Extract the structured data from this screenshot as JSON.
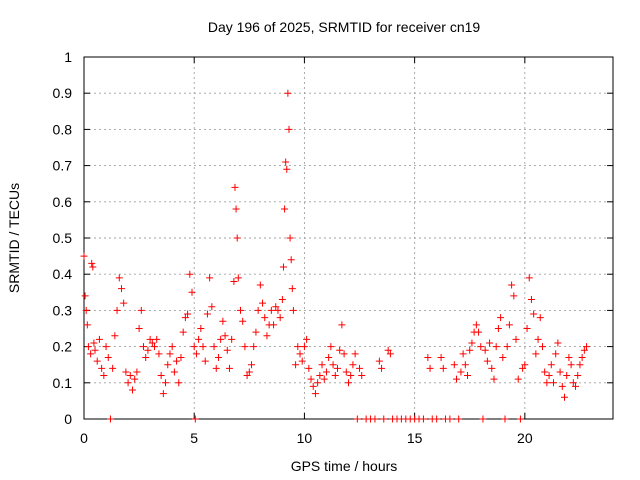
{
  "chart_data": {
    "type": "scatter",
    "title": "Day 196 of 2025, SRMTID for receiver cn19",
    "xlabel": "GPS time / hours",
    "ylabel": "SRMTID / TECUs",
    "xlim": [
      0,
      24
    ],
    "ylim": [
      0,
      1
    ],
    "x_ticks": [
      0,
      5,
      10,
      15,
      20
    ],
    "x_tick_labels": [
      "0",
      "5",
      "10",
      "15",
      "20"
    ],
    "y_ticks": [
      0,
      0.1,
      0.2,
      0.3,
      0.4,
      0.5,
      0.6,
      0.7,
      0.8,
      0.9,
      1
    ],
    "y_tick_labels": [
      "0",
      "0.1",
      "0.2",
      "0.3",
      "0.4",
      "0.5",
      "0.6",
      "0.7",
      "0.8",
      "0.9",
      "1"
    ],
    "grid": true,
    "marker": "+",
    "color": "#ff0000",
    "series": [
      {
        "name": "SRMTID",
        "points": [
          [
            0.0,
            0.45
          ],
          [
            0.05,
            0.34
          ],
          [
            0.1,
            0.3
          ],
          [
            0.15,
            0.26
          ],
          [
            0.2,
            0.2
          ],
          [
            0.3,
            0.18
          ],
          [
            0.35,
            0.43
          ],
          [
            0.4,
            0.42
          ],
          [
            0.45,
            0.21
          ],
          [
            0.5,
            0.19
          ],
          [
            0.6,
            0.16
          ],
          [
            0.7,
            0.22
          ],
          [
            0.8,
            0.14
          ],
          [
            0.9,
            0.12
          ],
          [
            1.0,
            0.2
          ],
          [
            1.1,
            0.17
          ],
          [
            1.2,
            0.0
          ],
          [
            1.3,
            0.14
          ],
          [
            1.4,
            0.23
          ],
          [
            1.5,
            0.3
          ],
          [
            1.6,
            0.39
          ],
          [
            1.7,
            0.36
          ],
          [
            1.8,
            0.32
          ],
          [
            1.9,
            0.13
          ],
          [
            2.0,
            0.1
          ],
          [
            2.1,
            0.12
          ],
          [
            2.2,
            0.08
          ],
          [
            2.3,
            0.11
          ],
          [
            2.4,
            0.13
          ],
          [
            2.5,
            0.25
          ],
          [
            2.6,
            0.3
          ],
          [
            2.7,
            0.2
          ],
          [
            2.8,
            0.17
          ],
          [
            2.9,
            0.19
          ],
          [
            3.0,
            0.22
          ],
          [
            3.1,
            0.21
          ],
          [
            3.2,
            0.2
          ],
          [
            3.3,
            0.22
          ],
          [
            3.4,
            0.18
          ],
          [
            3.5,
            0.12
          ],
          [
            3.6,
            0.07
          ],
          [
            3.7,
            0.1
          ],
          [
            3.8,
            0.15
          ],
          [
            3.9,
            0.18
          ],
          [
            4.0,
            0.2
          ],
          [
            4.1,
            0.13
          ],
          [
            4.2,
            0.16
          ],
          [
            4.3,
            0.1
          ],
          [
            4.4,
            0.17
          ],
          [
            4.5,
            0.24
          ],
          [
            4.6,
            0.28
          ],
          [
            4.7,
            0.29
          ],
          [
            4.8,
            0.4
          ],
          [
            4.9,
            0.35
          ],
          [
            5.0,
            0.2
          ],
          [
            5.05,
            0.0
          ],
          [
            5.1,
            0.18
          ],
          [
            5.2,
            0.22
          ],
          [
            5.3,
            0.25
          ],
          [
            5.4,
            0.2
          ],
          [
            5.5,
            0.16
          ],
          [
            5.6,
            0.29
          ],
          [
            5.7,
            0.39
          ],
          [
            5.8,
            0.31
          ],
          [
            5.9,
            0.2
          ],
          [
            6.0,
            0.14
          ],
          [
            6.1,
            0.17
          ],
          [
            6.2,
            0.22
          ],
          [
            6.3,
            0.27
          ],
          [
            6.4,
            0.23
          ],
          [
            6.5,
            0.19
          ],
          [
            6.6,
            0.14
          ],
          [
            6.7,
            0.22
          ],
          [
            6.8,
            0.38
          ],
          [
            6.85,
            0.64
          ],
          [
            6.9,
            0.58
          ],
          [
            6.95,
            0.5
          ],
          [
            7.0,
            0.39
          ],
          [
            7.1,
            0.3
          ],
          [
            7.2,
            0.27
          ],
          [
            7.3,
            0.2
          ],
          [
            7.4,
            0.12
          ],
          [
            7.5,
            0.13
          ],
          [
            7.6,
            0.15
          ],
          [
            7.7,
            0.2
          ],
          [
            7.8,
            0.24
          ],
          [
            7.9,
            0.3
          ],
          [
            8.0,
            0.37
          ],
          [
            8.1,
            0.32
          ],
          [
            8.2,
            0.28
          ],
          [
            8.3,
            0.23
          ],
          [
            8.4,
            0.26
          ],
          [
            8.5,
            0.3
          ],
          [
            8.6,
            0.26
          ],
          [
            8.7,
            0.31
          ],
          [
            8.8,
            0.3
          ],
          [
            8.9,
            0.28
          ],
          [
            9.0,
            0.33
          ],
          [
            9.05,
            0.42
          ],
          [
            9.1,
            0.58
          ],
          [
            9.15,
            0.71
          ],
          [
            9.2,
            0.69
          ],
          [
            9.25,
            0.9
          ],
          [
            9.3,
            0.8
          ],
          [
            9.35,
            0.5
          ],
          [
            9.4,
            0.44
          ],
          [
            9.45,
            0.36
          ],
          [
            9.5,
            0.3
          ],
          [
            9.6,
            0.15
          ],
          [
            9.7,
            0.2
          ],
          [
            9.8,
            0.18
          ],
          [
            9.9,
            0.16
          ],
          [
            10.0,
            0.2
          ],
          [
            10.1,
            0.22
          ],
          [
            10.2,
            0.14
          ],
          [
            10.3,
            0.11
          ],
          [
            10.4,
            0.09
          ],
          [
            10.5,
            0.07
          ],
          [
            10.6,
            0.1
          ],
          [
            10.7,
            0.12
          ],
          [
            10.8,
            0.15
          ],
          [
            10.9,
            0.11
          ],
          [
            11.0,
            0.13
          ],
          [
            11.1,
            0.17
          ],
          [
            11.2,
            0.2
          ],
          [
            11.3,
            0.15
          ],
          [
            11.4,
            0.12
          ],
          [
            11.5,
            0.14
          ],
          [
            11.6,
            0.19
          ],
          [
            11.7,
            0.26
          ],
          [
            11.8,
            0.18
          ],
          [
            11.9,
            0.13
          ],
          [
            12.0,
            0.1
          ],
          [
            12.1,
            0.12
          ],
          [
            12.2,
            0.15
          ],
          [
            12.3,
            0.18
          ],
          [
            12.4,
            0.0
          ],
          [
            12.5,
            0.14
          ],
          [
            12.6,
            0.12
          ],
          [
            12.8,
            0.0
          ],
          [
            13.0,
            0.0
          ],
          [
            13.2,
            0.0
          ],
          [
            13.4,
            0.16
          ],
          [
            13.5,
            0.14
          ],
          [
            13.6,
            0.0
          ],
          [
            13.8,
            0.19
          ],
          [
            13.9,
            0.18
          ],
          [
            14.0,
            0.0
          ],
          [
            14.2,
            0.0
          ],
          [
            14.4,
            0.0
          ],
          [
            14.6,
            0.0
          ],
          [
            14.8,
            0.0
          ],
          [
            15.0,
            0.0
          ],
          [
            15.2,
            0.0
          ],
          [
            15.4,
            0.0
          ],
          [
            15.6,
            0.17
          ],
          [
            15.7,
            0.14
          ],
          [
            15.8,
            0.0
          ],
          [
            16.0,
            0.0
          ],
          [
            16.2,
            0.17
          ],
          [
            16.3,
            0.14
          ],
          [
            16.4,
            0.0
          ],
          [
            16.6,
            0.0
          ],
          [
            16.8,
            0.15
          ],
          [
            16.9,
            0.11
          ],
          [
            17.0,
            0.0
          ],
          [
            17.1,
            0.13
          ],
          [
            17.2,
            0.18
          ],
          [
            17.3,
            0.15
          ],
          [
            17.4,
            0.12
          ],
          [
            17.5,
            0.19
          ],
          [
            17.6,
            0.21
          ],
          [
            17.7,
            0.24
          ],
          [
            17.8,
            0.26
          ],
          [
            17.9,
            0.24
          ],
          [
            18.0,
            0.2
          ],
          [
            18.1,
            0.0
          ],
          [
            18.2,
            0.19
          ],
          [
            18.3,
            0.16
          ],
          [
            18.4,
            0.21
          ],
          [
            18.5,
            0.14
          ],
          [
            18.6,
            0.11
          ],
          [
            18.7,
            0.2
          ],
          [
            18.8,
            0.25
          ],
          [
            18.9,
            0.28
          ],
          [
            19.0,
            0.17
          ],
          [
            19.1,
            0.0
          ],
          [
            19.2,
            0.2
          ],
          [
            19.3,
            0.26
          ],
          [
            19.4,
            0.37
          ],
          [
            19.5,
            0.34
          ],
          [
            19.6,
            0.22
          ],
          [
            19.7,
            0.11
          ],
          [
            19.8,
            0.0
          ],
          [
            19.9,
            0.14
          ],
          [
            20.0,
            0.15
          ],
          [
            20.1,
            0.25
          ],
          [
            20.2,
            0.39
          ],
          [
            20.3,
            0.33
          ],
          [
            20.4,
            0.29
          ],
          [
            20.5,
            0.18
          ],
          [
            20.6,
            0.22
          ],
          [
            20.7,
            0.28
          ],
          [
            20.8,
            0.2
          ],
          [
            20.9,
            0.13
          ],
          [
            21.0,
            0.1
          ],
          [
            21.1,
            0.12
          ],
          [
            21.2,
            0.15
          ],
          [
            21.3,
            0.1
          ],
          [
            21.4,
            0.18
          ],
          [
            21.5,
            0.21
          ],
          [
            21.6,
            0.13
          ],
          [
            21.7,
            0.09
          ],
          [
            21.8,
            0.06
          ],
          [
            21.9,
            0.12
          ],
          [
            22.0,
            0.17
          ],
          [
            22.1,
            0.15
          ],
          [
            22.2,
            0.1
          ],
          [
            22.3,
            0.09
          ],
          [
            22.4,
            0.12
          ],
          [
            22.5,
            0.15
          ],
          [
            22.6,
            0.17
          ],
          [
            22.7,
            0.19
          ],
          [
            22.8,
            0.2
          ]
        ]
      }
    ]
  }
}
